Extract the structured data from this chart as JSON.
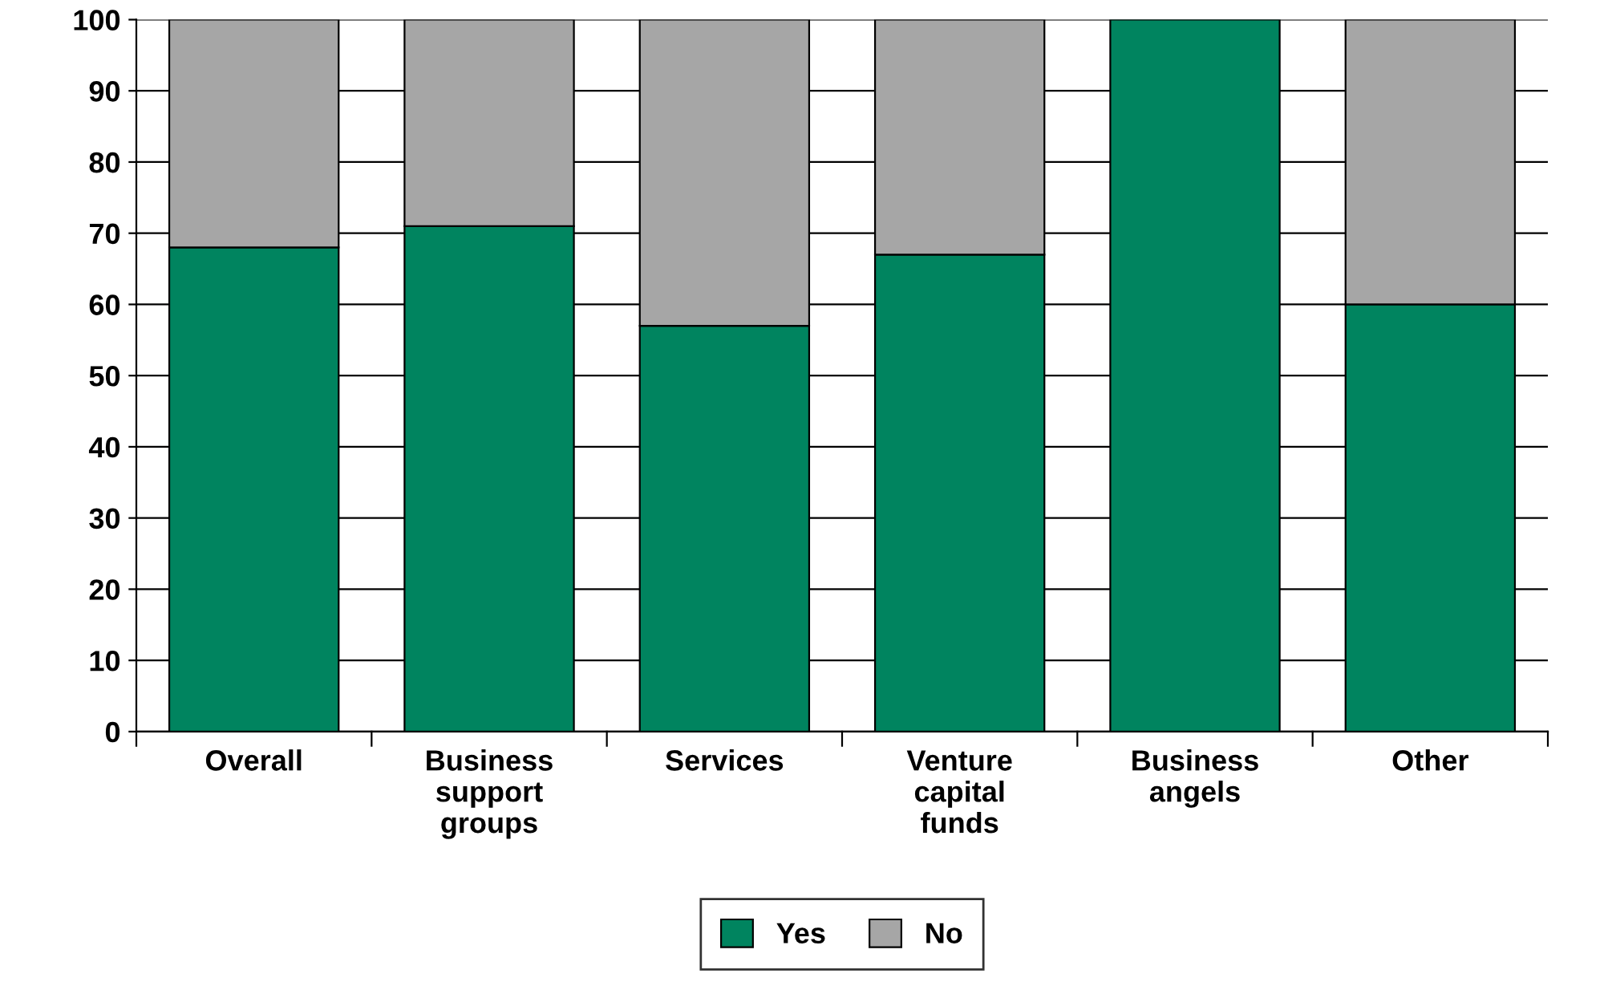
{
  "chart_data": {
    "type": "bar",
    "stacked": true,
    "categories": [
      "Overall",
      "Business\nsupport\ngroups",
      "Services",
      "Venture\ncapital\nfunds",
      "Business\nangels",
      "Other"
    ],
    "series": [
      {
        "name": "Yes",
        "color": "#00845f",
        "values": [
          68,
          71,
          57,
          67,
          100,
          60
        ]
      },
      {
        "name": "No",
        "color": "#a6a6a6",
        "values": [
          32,
          29,
          43,
          33,
          null,
          40
        ]
      }
    ],
    "ylim": [
      0,
      100
    ],
    "yticks": [
      0,
      10,
      20,
      30,
      40,
      50,
      60,
      70,
      80,
      90,
      100
    ],
    "grid": "y",
    "legend": "bottom"
  }
}
